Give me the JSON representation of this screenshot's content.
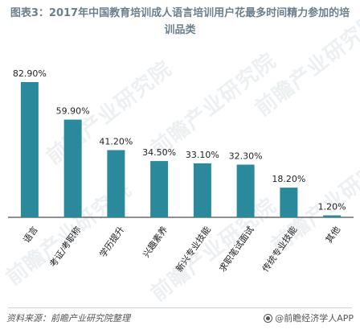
{
  "title": "图表3：2017年中国教育培训成人语言培训用户花最多时间精力参加的培训品类",
  "watermark": "前瞻产业研究院",
  "footer": {
    "source": "资料来源：前瞻产业研究院整理",
    "brand": "@前瞻经济学人APP"
  },
  "colors": {
    "bar": "#2a8a9c",
    "title": "#6b7f8c",
    "axis": "#222222"
  },
  "chart_data": {
    "type": "bar",
    "categories": [
      "语言",
      "考证/考职称",
      "学历提升",
      "兴趣素养",
      "新兴专业技能",
      "求职笔试面试",
      "传统专业技能",
      "其他"
    ],
    "values": [
      82.9,
      59.9,
      41.2,
      34.5,
      33.1,
      32.3,
      18.2,
      1.2
    ],
    "data_labels": [
      "82.90%",
      "59.90%",
      "41.20%",
      "34.50%",
      "33.10%",
      "32.30%",
      "18.20%",
      "1.20%"
    ],
    "ylim": [
      0,
      100
    ],
    "grid": false,
    "legend": "none"
  }
}
